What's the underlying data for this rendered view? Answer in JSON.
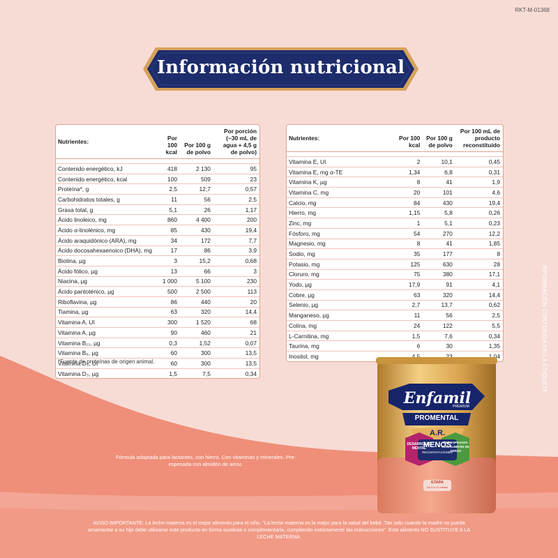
{
  "code": "RKT-M-01368",
  "title": "Información nutricional",
  "left_table": {
    "headers": [
      "Nutrientes:",
      "Por 100 kcal",
      "Por 100 g de polvo",
      "Por porción (~30 mL de agua + 4,5 g de polvo)"
    ],
    "rows": [
      [
        "Contenido energético, kJ",
        "418",
        "2 130",
        "95"
      ],
      [
        "Contenido energético, kcal",
        "100",
        "509",
        "23"
      ],
      [
        "Proteína*, g",
        "2,5",
        "12,7",
        "0,57"
      ],
      [
        "Carbohidratos totales, g",
        "11",
        "56",
        "2,5"
      ],
      [
        "Grasa total, g",
        "5,1",
        "26",
        "1,17"
      ],
      [
        "Ácido linoleico, mg",
        "860",
        "4 400",
        "200"
      ],
      [
        "Ácido α-linolénico, mg",
        "85",
        "430",
        "19,4"
      ],
      [
        "Ácido araquidónico (ARA), mg",
        "34",
        "172",
        "7,7"
      ],
      [
        "Ácido docosahexaenoico (DHA), mg",
        "17",
        "86",
        "3,9"
      ],
      [
        "Biotina, µg",
        "3",
        "15,2",
        "0,68"
      ],
      [
        "Ácido fólico, µg",
        "13",
        "66",
        "3"
      ],
      [
        "Niacina, µg",
        "1 000",
        "5 100",
        "230"
      ],
      [
        "Ácido pantoténico, µg",
        "500",
        "2 500",
        "113"
      ],
      [
        "Riboflavina, µg",
        "86",
        "440",
        "20"
      ],
      [
        "Tiamina, µg",
        "63",
        "320",
        "14,4"
      ],
      [
        "Vitamina A, UI",
        "300",
        "1 520",
        "68"
      ],
      [
        "Vitamina A, µg",
        "90",
        "460",
        "21"
      ],
      [
        "Vitamina B₁₂, µg",
        "0,3",
        "1,52",
        "0,07"
      ],
      [
        "Vitamina B₆, µg",
        "60",
        "300",
        "13,5"
      ],
      [
        "Vitamina D₃, UI",
        "60",
        "300",
        "13,5"
      ],
      [
        "Vitamina D₃, µg",
        "1,5",
        "7,5",
        "0,34"
      ]
    ]
  },
  "right_table": {
    "headers": [
      "Nutrientes:",
      "Por 100 kcal",
      "Por 100 g de polvo",
      "Por 100 mL de producto reconstituido"
    ],
    "rows": [
      [
        "Vitamina E, UI",
        "2",
        "10,1",
        "0,45"
      ],
      [
        "Vitamina E, mg α-TE",
        "1,34",
        "6,8",
        "0,31"
      ],
      [
        "Vitamina K, µg",
        "8",
        "41",
        "1,9"
      ],
      [
        "Vitamina C, mg",
        "20",
        "101",
        "4,6"
      ],
      [
        "Calcio, mg",
        "84",
        "430",
        "19,4"
      ],
      [
        "Hierro, mg",
        "1,15",
        "5,8",
        "0,26"
      ],
      [
        "Zinc, mg",
        "1",
        "5,1",
        "0,23"
      ],
      [
        "Fósforo, mg",
        "54",
        "270",
        "12,2"
      ],
      [
        "Magnesio, mg",
        "8",
        "41",
        "1,85"
      ],
      [
        "Sodio, mg",
        "35",
        "177",
        "8"
      ],
      [
        "Potasio, mg",
        "125",
        "630",
        "28"
      ],
      [
        "Cloruro, mg",
        "75",
        "380",
        "17,1"
      ],
      [
        "Yodo, µg",
        "17,9",
        "91",
        "4,1"
      ],
      [
        "Cobre, µg",
        "63",
        "320",
        "14,4"
      ],
      [
        "Selenio, µg",
        "2,7",
        "13,7",
        "0,62"
      ],
      [
        "Manganeso, µg",
        "11",
        "56",
        "2,5"
      ],
      [
        "Colina, mg",
        "24",
        "122",
        "5,5"
      ],
      [
        "L-Carnitina, mg",
        "1,5",
        "7,6",
        "0,34"
      ],
      [
        "Taurina, mg",
        "6",
        "30",
        "1,35"
      ],
      [
        "Inositol, mg",
        "4,5",
        "23",
        "1,04"
      ]
    ]
  },
  "footnote": "*Fuente de proteínas de origen animal.",
  "description": "Fórmula adaptada para lactantes, con hierro. Con vitaminas y minerales. Pre-espesada con almidón de arroz.",
  "side_text": "INFORMACIÓN CONTENIDA EN LA ETIQUETA",
  "notice": "AVISO IMPORTANTE: La leche materna es el mejor alimento para el niño. \"La leche materna es la mejor para la salud del bebé. Tan solo cuando la madre no pueda amamantar a su hijo debe utilizarse este producto en forma sustituta o complementaria, cumpliendo estrictamente las instrucciones\". Este alimento NO SUSTITUYE A LA LECHE MATERNA.",
  "can": {
    "brand": "Enfamil",
    "tier": "PREMIUM",
    "line": "PROMENTAL",
    "variant": "A.R.",
    "badge_left": "DESARROLLO MENTAL",
    "badge_center": "MENOS",
    "badge_center_sub": "REGURGITACIONES",
    "badge_right": "PRE-ESPESADA CON ALMIDÓN DE ARROZ",
    "stage_label": "ETAPA",
    "stage_sub": "De 0 a 12 meses"
  },
  "colors": {
    "background": "#f7dcd6",
    "banner_navy": "#1d2c6b",
    "banner_gold": "#d6a25b",
    "wave_coral": "#ef8f79",
    "table_border": "#e3a08e"
  }
}
